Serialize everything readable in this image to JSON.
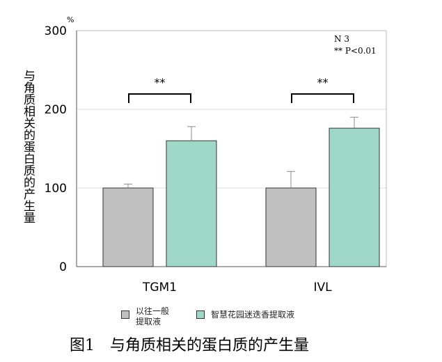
{
  "chart_data": {
    "type": "bar",
    "categories": [
      "TGM1",
      "IVL"
    ],
    "series": [
      {
        "name": "以往一般提取液",
        "color": "#c0c0c0",
        "values": [
          100,
          100
        ],
        "errors": [
          5,
          21
        ]
      },
      {
        "name": "智慧花园迷迭香提取液",
        "color": "#a0d8c8",
        "values": [
          160,
          176
        ],
        "errors": [
          18,
          14
        ]
      }
    ],
    "ylim": [
      0,
      300
    ],
    "yticks": [
      "0",
      "100",
      "200",
      "300"
    ],
    "yunit": "%",
    "ylabel": "与角质相关的蛋白质的产生量",
    "grid": true,
    "significance": [
      "**",
      "**"
    ],
    "annotation": [
      "N 3",
      "** P<0.01"
    ],
    "legend": {
      "placement": "bottom",
      "items": [
        "以往一般\n提取液",
        "智慧花园迷迭香提取液"
      ]
    },
    "caption": "图1　与角质相关的蛋白质的产生量"
  }
}
